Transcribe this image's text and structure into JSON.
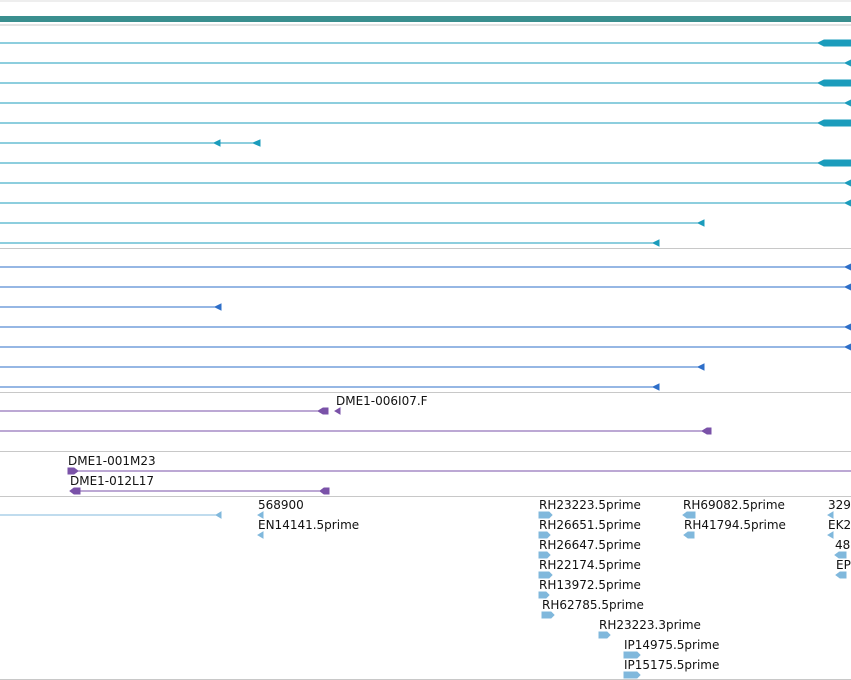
{
  "colors": {
    "teal_band": "#3a8f8f",
    "transcript_a": "#1b9cbc",
    "transcript_b": "#2e6fc9",
    "bac_purple": "#7a52a8",
    "est_blue": "#80b8dc",
    "separator": "#c8c8c8"
  },
  "tracks": {
    "bac_labels": [
      "DME1-006I07.F",
      "DME1-001M23",
      "DME1-012L17"
    ],
    "est_labels": [
      "568900",
      "EN14141.5prime",
      "RH23223.5prime",
      "RH26651.5prime",
      "RH26647.5prime",
      "RH22174.5prime",
      "RH13972.5prime",
      "RH62785.5prime",
      "RH23223.3prime",
      "IP14975.5prime",
      "IP15175.5prime",
      "RH69082.5prime",
      "RH41794.5prime",
      "329",
      "EK2",
      "48",
      "EP"
    ]
  }
}
